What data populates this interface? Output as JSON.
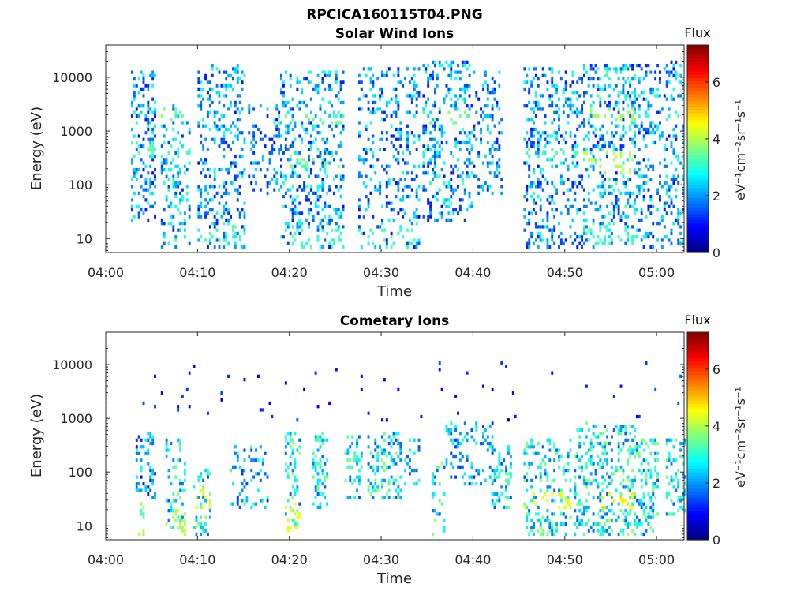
{
  "figure": {
    "title": "RPCICA160115T04.PNG",
    "colormap": "jet",
    "colors": {
      "axis": "#262626",
      "background": "#ffffff"
    }
  },
  "chart_data": [
    {
      "type": "heatmap",
      "title": "Solar Wind Ions",
      "xlabel": "Time",
      "ylabel": "Energy (eV)",
      "x_unit": "minutes after 04:00",
      "xlim": [
        0,
        63
      ],
      "ylim": [
        5.5,
        40000
      ],
      "y_scale": "log",
      "x_ticks": [
        0,
        10,
        20,
        30,
        40,
        50,
        60
      ],
      "x_tick_labels": [
        "04:00",
        "04:10",
        "04:20",
        "04:30",
        "04:40",
        "04:50",
        "05:00"
      ],
      "y_ticks": [
        10,
        100,
        1000,
        10000
      ],
      "y_tick_labels": [
        "10",
        "100",
        "1000",
        "10000"
      ],
      "colorbar": {
        "title": "Flux",
        "label": "eV-1cm-2sr-1s-1",
        "label_display": "eV⁻¹cm⁻²sr⁻¹s⁻¹",
        "range": [
          0,
          7.3
        ],
        "ticks": [
          0,
          2,
          4,
          6
        ],
        "tick_labels": [
          "0",
          "2",
          "4",
          "6"
        ]
      },
      "bursts": [
        {
          "t": [
            2.6,
            5.3
          ],
          "e": [
            20,
            12000
          ],
          "flux": [
            1.0,
            3.0
          ],
          "density": 0.28,
          "hot": [
            [
              300,
              600,
              3.0
            ]
          ]
        },
        {
          "t": [
            5.9,
            9.2
          ],
          "e": [
            6,
            3000
          ],
          "flux": [
            1.2,
            3.2
          ],
          "density": 0.24,
          "hot": [
            [
              1500,
              2500,
              3.4
            ],
            [
              300,
              500,
              3.0
            ]
          ]
        },
        {
          "t": [
            9.8,
            15.0
          ],
          "e": [
            6,
            16000
          ],
          "flux": [
            1.0,
            3.0
          ],
          "density": 0.26,
          "hot": [
            [
              8,
              20,
              3.0
            ]
          ]
        },
        {
          "t": [
            15.5,
            19.0
          ],
          "e": [
            60,
            3000
          ],
          "flux": [
            1.0,
            2.6
          ],
          "density": 0.22,
          "hot": [
            [
              1200,
              2000,
              3.0
            ]
          ]
        },
        {
          "t": [
            19.0,
            25.8
          ],
          "e": [
            6,
            12000
          ],
          "flux": [
            1.0,
            3.2
          ],
          "density": 0.26,
          "hot": [
            [
              200,
              350,
              3.4
            ],
            [
              1300,
              2000,
              3.2
            ],
            [
              6,
              15,
              3.0
            ]
          ]
        },
        {
          "t": [
            27.5,
            34.0
          ],
          "e": [
            6,
            15000
          ],
          "flux": [
            1.0,
            3.0
          ],
          "density": 0.22,
          "hot": [
            [
              6,
              15,
              3.0
            ]
          ]
        },
        {
          "t": [
            34.5,
            39.8
          ],
          "e": [
            20,
            20000
          ],
          "flux": [
            1.0,
            3.2
          ],
          "density": 0.26,
          "hot": [
            [
              1300,
              2200,
              3.4
            ]
          ]
        },
        {
          "t": [
            39.8,
            43.0
          ],
          "e": [
            60,
            12000
          ],
          "flux": [
            1.0,
            2.8
          ],
          "density": 0.22,
          "hot": []
        },
        {
          "t": [
            45.5,
            52.0
          ],
          "e": [
            6,
            15000
          ],
          "flux": [
            1.0,
            3.0
          ],
          "density": 0.26,
          "hot": [
            [
              300,
              500,
              3.0
            ]
          ]
        },
        {
          "t": [
            52.0,
            57.5
          ],
          "e": [
            6,
            16000
          ],
          "flux": [
            1.0,
            3.4
          ],
          "density": 0.28,
          "hot": [
            [
              150,
              400,
              3.8
            ],
            [
              1500,
              2500,
              3.6
            ],
            [
              6,
              20,
              3.0
            ]
          ]
        },
        {
          "t": [
            57.5,
            62.8
          ],
          "e": [
            6,
            20000
          ],
          "flux": [
            1.0,
            3.0
          ],
          "density": 0.24,
          "hot": [
            [
              1200,
              2000,
              3.0
            ]
          ]
        }
      ]
    },
    {
      "type": "heatmap",
      "title": "Cometary Ions",
      "xlabel": "Time",
      "ylabel": "Energy (eV)",
      "x_unit": "minutes after 04:00",
      "xlim": [
        0,
        63
      ],
      "ylim": [
        5.5,
        40000
      ],
      "y_scale": "log",
      "x_ticks": [
        0,
        10,
        20,
        30,
        40,
        50,
        60
      ],
      "x_tick_labels": [
        "04:00",
        "04:10",
        "04:20",
        "04:30",
        "04:40",
        "04:50",
        "05:00"
      ],
      "y_ticks": [
        10,
        100,
        1000,
        10000
      ],
      "y_tick_labels": [
        "10",
        "100",
        "1000",
        "10000"
      ],
      "colorbar": {
        "title": "Flux",
        "label": "eV-1cm-2sr-1s-1",
        "label_display": "eV⁻¹cm⁻²sr⁻¹s⁻¹",
        "range": [
          0,
          7.3
        ],
        "ticks": [
          0,
          2,
          4,
          6
        ],
        "tick_labels": [
          "0",
          "2",
          "4",
          "6"
        ]
      },
      "bursts": [
        {
          "t": [
            3.2,
            5.3
          ],
          "e": [
            30,
            500
          ],
          "flux": [
            1.0,
            3.0
          ],
          "density": 0.3,
          "hot": []
        },
        {
          "t": [
            3.5,
            4.2
          ],
          "e": [
            6,
            25
          ],
          "flux": [
            3.0,
            4.2
          ],
          "density": 0.35,
          "hot": []
        },
        {
          "t": [
            6.3,
            8.5
          ],
          "e": [
            6,
            400
          ],
          "flux": [
            1.5,
            3.6
          ],
          "density": 0.26,
          "hot": [
            [
              6,
              20,
              3.8
            ]
          ]
        },
        {
          "t": [
            9.5,
            11.3
          ],
          "e": [
            6,
            120
          ],
          "flux": [
            1.5,
            4.0
          ],
          "density": 0.26,
          "hot": [
            [
              20,
              50,
              4.2
            ]
          ]
        },
        {
          "t": [
            13.5,
            17.5
          ],
          "e": [
            20,
            300
          ],
          "flux": [
            1.2,
            3.2
          ],
          "density": 0.2,
          "hot": []
        },
        {
          "t": [
            19.3,
            21.0
          ],
          "e": [
            6,
            500
          ],
          "flux": [
            1.5,
            4.0
          ],
          "density": 0.3,
          "hot": [
            [
              6,
              25,
              4.2
            ]
          ]
        },
        {
          "t": [
            22.5,
            24.0
          ],
          "e": [
            20,
            500
          ],
          "flux": [
            1.5,
            3.8
          ],
          "density": 0.3,
          "hot": []
        },
        {
          "t": [
            25.8,
            27.8
          ],
          "e": [
            30,
            500
          ],
          "flux": [
            1.5,
            3.6
          ],
          "density": 0.3,
          "hot": []
        },
        {
          "t": [
            28.5,
            32.0
          ],
          "e": [
            30,
            500
          ],
          "flux": [
            1.5,
            3.8
          ],
          "density": 0.3,
          "hot": []
        },
        {
          "t": [
            32.5,
            34.0
          ],
          "e": [
            50,
            400
          ],
          "flux": [
            1.5,
            3.2
          ],
          "density": 0.25,
          "hot": []
        },
        {
          "t": [
            35.5,
            36.8
          ],
          "e": [
            6,
            150
          ],
          "flux": [
            1.5,
            4.0
          ],
          "density": 0.25,
          "hot": []
        },
        {
          "t": [
            37.0,
            42.0
          ],
          "e": [
            50,
            800
          ],
          "flux": [
            1.2,
            3.0
          ],
          "density": 0.22,
          "hot": []
        },
        {
          "t": [
            42.0,
            44.0
          ],
          "e": [
            20,
            300
          ],
          "flux": [
            1.5,
            3.6
          ],
          "density": 0.28,
          "hot": []
        },
        {
          "t": [
            45.5,
            50.5
          ],
          "e": [
            6,
            400
          ],
          "flux": [
            1.5,
            3.8
          ],
          "density": 0.26,
          "hot": [
            [
              20,
              40,
              4.2
            ]
          ]
        },
        {
          "t": [
            51.0,
            54.0
          ],
          "e": [
            6,
            800
          ],
          "flux": [
            1.5,
            3.8
          ],
          "density": 0.28,
          "hot": []
        },
        {
          "t": [
            54.0,
            57.5
          ],
          "e": [
            6,
            700
          ],
          "flux": [
            1.5,
            4.2
          ],
          "density": 0.3,
          "hot": [
            [
              20,
              40,
              4.5
            ]
          ]
        },
        {
          "t": [
            57.5,
            60.0
          ],
          "e": [
            6,
            400
          ],
          "flux": [
            1.5,
            3.8
          ],
          "density": 0.28,
          "hot": []
        },
        {
          "t": [
            61.0,
            63.0
          ],
          "e": [
            15,
            400
          ],
          "flux": [
            1.5,
            3.6
          ],
          "density": 0.3,
          "hot": []
        },
        {
          "t": [
            3.0,
            63.0
          ],
          "e": [
            800,
            12000
          ],
          "flux": [
            0.6,
            1.6
          ],
          "density": 0.015,
          "hot": []
        }
      ]
    }
  ]
}
